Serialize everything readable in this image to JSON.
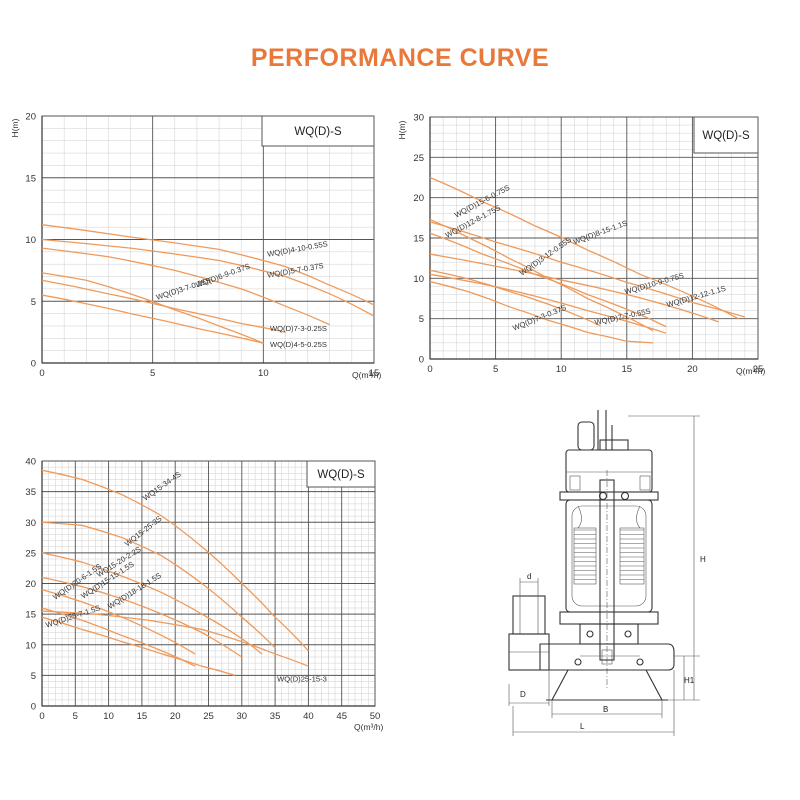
{
  "title": "PERFORMANCE CURVE",
  "drawing": {
    "labels": {
      "H": "H",
      "H1": "H1",
      "d": "d",
      "D": "D",
      "B": "B",
      "L": "L"
    }
  },
  "chart_data": [
    {
      "type": "line",
      "legend": "WQ(D)-S",
      "xlabel": "Q(m³/h)",
      "ylabel": "H(m)",
      "xlim": [
        0,
        15
      ],
      "ylim": [
        0,
        20
      ],
      "xticks": [
        0,
        5,
        10,
        15
      ],
      "yticks": [
        0,
        5,
        10,
        15,
        20
      ],
      "grid": true,
      "series": [
        {
          "name": "WQ(D)4-10-0.55S",
          "points": [
            [
              0,
              11.2
            ],
            [
              4,
              10.2
            ],
            [
              8,
              9.2
            ],
            [
              11,
              7.8
            ],
            [
              13,
              6.3
            ],
            [
              15,
              4.7
            ]
          ]
        },
        {
          "name": "WQ(D)5-7-0.37S",
          "points": [
            [
              0,
              10
            ],
            [
              4,
              9.3
            ],
            [
              8,
              8.3
            ],
            [
              11,
              7
            ],
            [
              13,
              5.6
            ],
            [
              15,
              3.8
            ]
          ]
        },
        {
          "name": "WQ(D)6-9-0.37S",
          "points": [
            [
              0,
              9.3
            ],
            [
              3,
              8.6
            ],
            [
              6,
              7.5
            ],
            [
              9,
              6
            ],
            [
              11,
              4.6
            ],
            [
              13,
              3.1
            ]
          ]
        },
        {
          "name": "WQ(D)3-7-0.25S",
          "points": [
            [
              0,
              7.3
            ],
            [
              2,
              6.7
            ],
            [
              4,
              5.6
            ],
            [
              6,
              4.3
            ],
            [
              8,
              3
            ],
            [
              10,
              1.6
            ]
          ]
        },
        {
          "name": "WQ(D)7-3-0.25S",
          "points": [
            [
              0,
              6.7
            ],
            [
              3,
              5.6
            ],
            [
              6,
              4.4
            ],
            [
              9,
              3.2
            ],
            [
              11,
              2.5
            ]
          ]
        },
        {
          "name": "WQ(D)4-5-0.25S",
          "points": [
            [
              0,
              5.5
            ],
            [
              2,
              4.8
            ],
            [
              4,
              4
            ],
            [
              7,
              2.8
            ],
            [
              10,
              1.6
            ]
          ]
        }
      ]
    },
    {
      "type": "line",
      "legend": "WQ(D)-S",
      "xlabel": "Q(m³/h)",
      "ylabel": "H(m)",
      "xlim": [
        0,
        25
      ],
      "ylim": [
        0,
        30
      ],
      "xticks": [
        0,
        5,
        10,
        15,
        20,
        25
      ],
      "yticks": [
        0,
        5,
        10,
        15,
        20,
        25,
        30
      ],
      "grid": true,
      "series": [
        {
          "name": "WQ(D)8-15-1.1S",
          "points": [
            [
              0,
              22.5
            ],
            [
              4,
              19.5
            ],
            [
              8,
              16.5
            ],
            [
              12,
              13.5
            ],
            [
              16,
              10.5
            ],
            [
              20,
              7.8
            ],
            [
              23.5,
              5
            ]
          ]
        },
        {
          "name": "WQ(D)15-6-0.75S",
          "points": [
            [
              0,
              17.3
            ],
            [
              3,
              15
            ],
            [
              6,
              12.5
            ],
            [
              9,
              10
            ],
            [
              12,
              7.5
            ],
            [
              15,
              5.2
            ],
            [
              17,
              3.5
            ]
          ]
        },
        {
          "name": "WQ(D)12-8-1.75S",
          "points": [
            [
              0,
              15.6
            ],
            [
              4,
              13
            ],
            [
              8,
              10.5
            ],
            [
              12,
              8
            ],
            [
              16,
              5.5
            ],
            [
              18,
              4
            ]
          ]
        },
        {
          "name": "WQ(D)10-9-0.75S",
          "points": [
            [
              0,
              13
            ],
            [
              5,
              11.5
            ],
            [
              10,
              9.8
            ],
            [
              15,
              8
            ],
            [
              19,
              6.2
            ],
            [
              22,
              4.6
            ]
          ]
        },
        {
          "name": "WQ(D)12-12-1.1S",
          "points": [
            [
              0,
              17
            ],
            [
              5,
              14.5
            ],
            [
              10,
              12
            ],
            [
              15,
              9.5
            ],
            [
              20,
              7
            ],
            [
              24,
              5.2
            ]
          ]
        },
        {
          "name": "WQ(D)3-12-0.55S",
          "points": [
            [
              0,
              11
            ],
            [
              3,
              9.9
            ],
            [
              6,
              8.4
            ],
            [
              9,
              6.8
            ],
            [
              11.5,
              5.2
            ],
            [
              13,
              4.1
            ]
          ]
        },
        {
          "name": "WQ(D)7-7-0.55S",
          "points": [
            [
              0,
              10.5
            ],
            [
              4,
              9.3
            ],
            [
              8,
              7.8
            ],
            [
              12,
              6
            ],
            [
              16,
              4.2
            ],
            [
              18,
              3.2
            ]
          ]
        },
        {
          "name": "WQ(D)7-3-0.37S",
          "points": [
            [
              0,
              9.6
            ],
            [
              3,
              8.3
            ],
            [
              6,
              6.5
            ],
            [
              9,
              4.8
            ],
            [
              12,
              3.3
            ],
            [
              15,
              2.2
            ],
            [
              17,
              2
            ]
          ]
        }
      ]
    },
    {
      "type": "line",
      "legend": "WQ(D)-S",
      "xlabel": "Q(m³/h)",
      "ylabel": "",
      "xlim": [
        0,
        50
      ],
      "ylim": [
        0,
        40
      ],
      "xticks": [
        0,
        5,
        10,
        15,
        20,
        25,
        30,
        35,
        40,
        45,
        50
      ],
      "yticks": [
        0,
        5,
        10,
        15,
        20,
        25,
        30,
        35,
        40
      ],
      "grid": true,
      "series": [
        {
          "name": "WQ15-34-4S",
          "points": [
            [
              0,
              38.5
            ],
            [
              6,
              37
            ],
            [
              12,
              34.5
            ],
            [
              18,
              31
            ],
            [
              24,
              26
            ],
            [
              30,
              20
            ],
            [
              35,
              14.5
            ],
            [
              40,
              9
            ]
          ]
        },
        {
          "name": "WQ15-25-3S",
          "points": [
            [
              0,
              30
            ],
            [
              6,
              29.5
            ],
            [
              12,
              27.5
            ],
            [
              18,
              24.5
            ],
            [
              24,
              20
            ],
            [
              30,
              14.5
            ],
            [
              35,
              9.5
            ]
          ]
        },
        {
          "name": "WQ15-20-2.2S",
          "points": [
            [
              0,
              25
            ],
            [
              6,
              23.5
            ],
            [
              12,
              21.2
            ],
            [
              18,
              18.5
            ],
            [
              24,
              15
            ],
            [
              30,
              11
            ],
            [
              33,
              8.5
            ]
          ]
        },
        {
          "name": "WQ(D)15-15-1.5S",
          "points": [
            [
              0,
              21
            ],
            [
              6,
              19.5
            ],
            [
              12,
              17.5
            ],
            [
              18,
              15
            ],
            [
              24,
              12
            ],
            [
              30,
              8
            ]
          ]
        },
        {
          "name": "WQ(D)18-18-1.5S",
          "points": [
            [
              0,
              19
            ],
            [
              6,
              17
            ],
            [
              12,
              14.5
            ],
            [
              18,
              11.5
            ],
            [
              23,
              8.5
            ]
          ]
        },
        {
          "name": "WQ(D)20-6-1.5S",
          "points": [
            [
              0,
              16
            ],
            [
              6,
              14
            ],
            [
              12,
              11.5
            ],
            [
              18,
              9
            ],
            [
              23,
              6.5
            ]
          ]
        },
        {
          "name": "WQ(D)25-7-1.5S",
          "points": [
            [
              0,
              14.5
            ],
            [
              6,
              12.5
            ],
            [
              12,
              10.5
            ],
            [
              18,
              8.5
            ],
            [
              24,
              6.5
            ],
            [
              29,
              5
            ]
          ]
        },
        {
          "name": "WQ(D)25-15-3",
          "points": [
            [
              0,
              15.5
            ],
            [
              8,
              15
            ],
            [
              16,
              14
            ],
            [
              24,
              12.5
            ],
            [
              30,
              10.5
            ],
            [
              35,
              8.5
            ],
            [
              40,
              6.5
            ]
          ]
        }
      ]
    }
  ]
}
